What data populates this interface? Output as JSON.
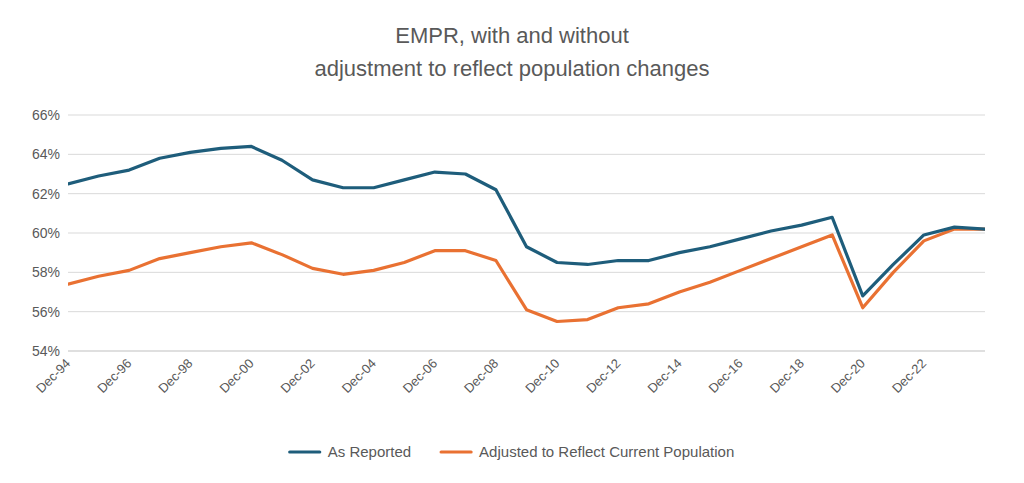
{
  "chart_data": {
    "type": "line",
    "title": "EMPR, with and without\nadjustment to reflect population changes",
    "categories": [
      "Dec-94",
      null,
      "Dec-96",
      null,
      "Dec-98",
      null,
      "Dec-00",
      null,
      "Dec-02",
      null,
      "Dec-04",
      null,
      "Dec-06",
      null,
      "Dec-08",
      null,
      "Dec-10",
      null,
      "Dec-12",
      null,
      "Dec-14",
      null,
      "Dec-16",
      null,
      "Dec-18",
      null,
      "Dec-20",
      null,
      "Dec-22",
      null,
      null
    ],
    "series": [
      {
        "name": "As Reported",
        "color": "#1e5d7b",
        "values": [
          62.5,
          62.9,
          63.2,
          63.8,
          64.1,
          64.3,
          64.4,
          63.7,
          62.7,
          62.3,
          62.3,
          62.7,
          63.1,
          63.0,
          62.2,
          59.3,
          58.5,
          58.4,
          58.6,
          58.6,
          59.0,
          59.3,
          59.7,
          60.1,
          60.4,
          60.8,
          56.8,
          58.4,
          59.9,
          60.3,
          60.2
        ]
      },
      {
        "name": "Adjusted to Reflect Current Population",
        "color": "#e97132",
        "values": [
          57.4,
          57.8,
          58.1,
          58.7,
          59.0,
          59.3,
          59.5,
          58.9,
          58.2,
          57.9,
          58.1,
          58.5,
          59.1,
          59.1,
          58.6,
          56.1,
          55.5,
          55.6,
          56.2,
          56.4,
          57.0,
          57.5,
          58.1,
          58.7,
          59.3,
          59.9,
          56.2,
          58.0,
          59.6,
          60.2,
          60.2
        ]
      }
    ],
    "ylim": [
      54,
      66
    ],
    "yticks": [
      {
        "value": 54,
        "label": "54%"
      },
      {
        "value": 56,
        "label": "56%"
      },
      {
        "value": 58,
        "label": "58%"
      },
      {
        "value": 60,
        "label": "60%"
      },
      {
        "value": 62,
        "label": "62%"
      },
      {
        "value": 64,
        "label": "64%"
      },
      {
        "value": 66,
        "label": "66%"
      }
    ],
    "grid": true,
    "legend": "bottom"
  }
}
